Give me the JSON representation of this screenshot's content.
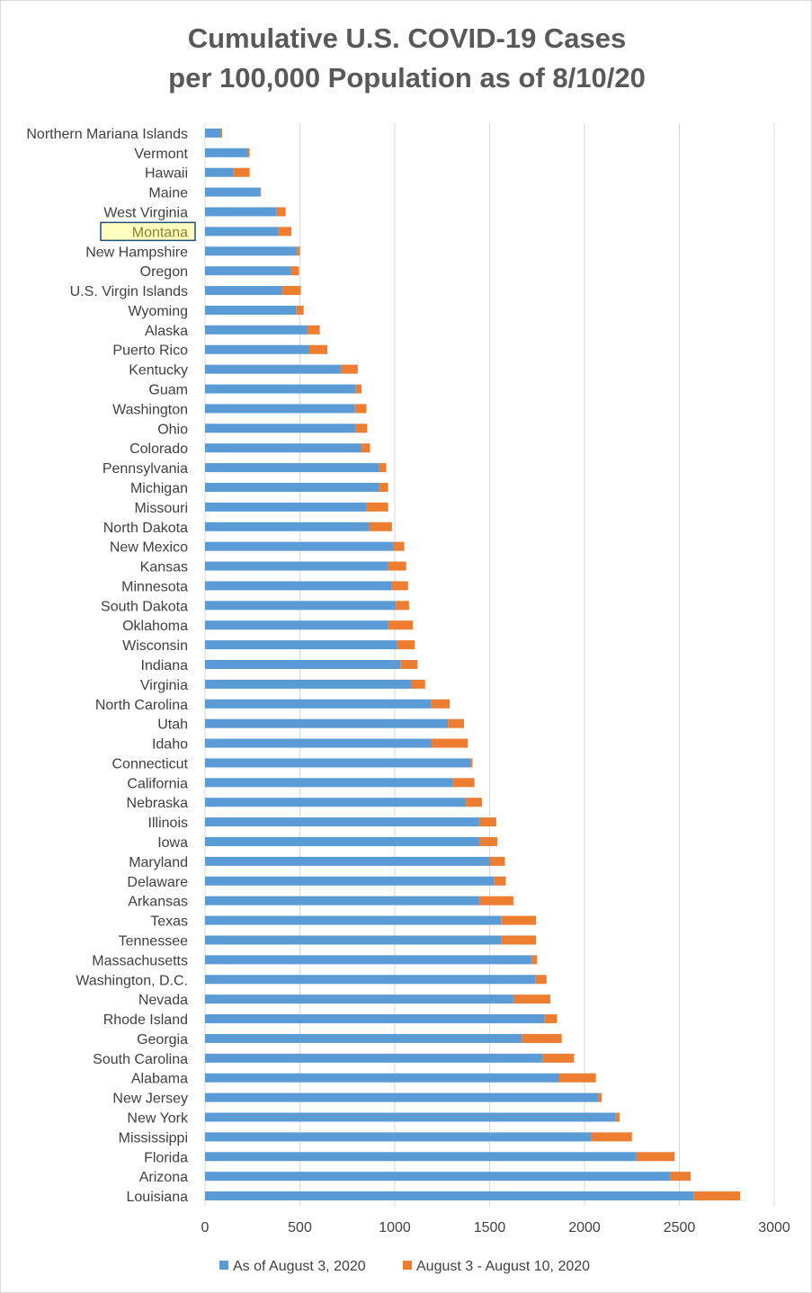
{
  "chart_data": {
    "type": "bar",
    "orientation": "horizontal",
    "stacked": true,
    "title_line1": "Cumulative U.S. COVID-19 Cases",
    "title_line2": "per 100,000 Population as of 8/10/20",
    "xlim": [
      0,
      3000
    ],
    "xticks": [
      "0",
      "500",
      "1000",
      "1500",
      "2000",
      "2500",
      "3000"
    ],
    "grid": "vertical",
    "legend_position": "bottom",
    "highlighted_category": "Montana",
    "categories": [
      "Northern Mariana Islands",
      "Vermont",
      "Hawaii",
      "Maine",
      "West Virginia",
      "Montana",
      "New Hampshire",
      "Oregon",
      "U.S. Virgin Islands",
      "Wyoming",
      "Alaska",
      "Puerto Rico",
      "Kentucky",
      "Guam",
      "Washington",
      "Ohio",
      "Colorado",
      "Pennsylvania",
      "Michigan",
      "Missouri",
      "North Dakota",
      "New Mexico",
      "Kansas",
      "Minnesota",
      "South Dakota",
      "Oklahoma",
      "Wisconsin",
      "Indiana",
      "Virginia",
      "North Carolina",
      "Utah",
      "Idaho",
      "Connecticut",
      "California",
      "Nebraska",
      "Illinois",
      "Iowa",
      "Maryland",
      "Delaware",
      "Arkansas",
      "Texas",
      "Tennessee",
      "Massachusetts",
      "Washington, D.C.",
      "Nevada",
      "Rhode Island",
      "Georgia",
      "South Carolina",
      "Alabama",
      "New Jersey",
      "New York",
      "Mississippi",
      "Florida",
      "Arizona",
      "Louisiana"
    ],
    "series": [
      {
        "name": "As of August 3, 2020",
        "color": "#5b9bd5",
        "values": [
          85,
          225,
          150,
          290,
          375,
          385,
          485,
          450,
          405,
          480,
          540,
          550,
          715,
          795,
          790,
          795,
          825,
          915,
          915,
          850,
          865,
          995,
          965,
          985,
          1005,
          965,
          1010,
          1030,
          1085,
          1190,
          1280,
          1195,
          1400,
          1305,
          1375,
          1445,
          1445,
          1500,
          1525,
          1445,
          1560,
          1560,
          1720,
          1740,
          1625,
          1790,
          1670,
          1780,
          1865,
          2075,
          2165,
          2035,
          2270,
          2450,
          2575
        ]
      },
      {
        "name": "August 3 - August 10, 2020",
        "color": "#ed7d31",
        "values": [
          5,
          10,
          85,
          5,
          50,
          70,
          15,
          45,
          100,
          40,
          65,
          95,
          90,
          30,
          60,
          60,
          45,
          40,
          50,
          115,
          120,
          55,
          95,
          85,
          70,
          130,
          95,
          90,
          75,
          100,
          85,
          190,
          10,
          115,
          85,
          90,
          95,
          80,
          60,
          180,
          185,
          185,
          30,
          60,
          195,
          65,
          210,
          165,
          195,
          15,
          20,
          215,
          205,
          110,
          245
        ]
      }
    ]
  }
}
